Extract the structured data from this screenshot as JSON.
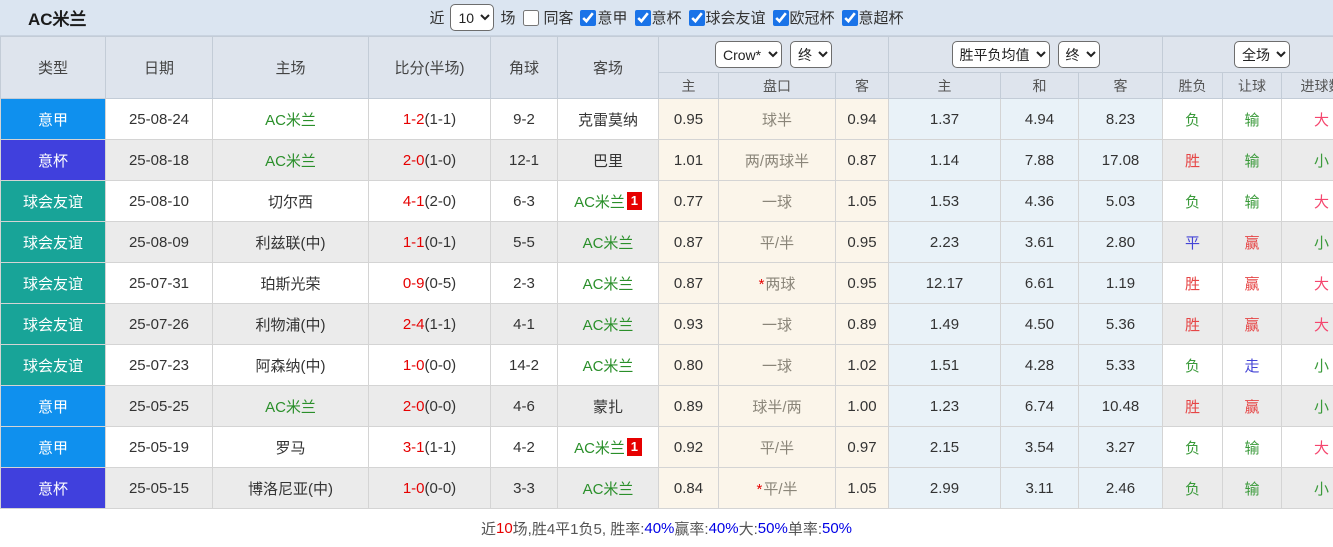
{
  "header": {
    "title": "AC米兰",
    "near_label": "近",
    "count_value": "10",
    "count_unit": "场",
    "same_away_label": "同客",
    "same_away_checked": false,
    "leagues": [
      {
        "label": "意甲",
        "checked": true
      },
      {
        "label": "意杯",
        "checked": true
      },
      {
        "label": "球会友谊",
        "checked": true
      },
      {
        "label": "欧冠杯",
        "checked": true
      },
      {
        "label": "意超杯",
        "checked": true
      }
    ]
  },
  "table": {
    "main_headers": [
      "类型",
      "日期",
      "主场",
      "比分(半场)",
      "角球",
      "客场"
    ],
    "selects": {
      "bookmaker": "Crow*",
      "handicap_time": "终",
      "europe_avg": "胜平负均值",
      "europe_time": "终",
      "scope": "全场"
    },
    "sub_headers": [
      "主",
      "盘口",
      "客",
      "主",
      "和",
      "客",
      "胜负",
      "让球",
      "进球数"
    ],
    "rows": [
      {
        "type": "意甲",
        "type_key": "seriea",
        "date": "25-08-24",
        "home": "AC米兰",
        "home_green": true,
        "score": "1-2",
        "half": "(1-1)",
        "corners": "9-2",
        "away": "克雷莫纳",
        "away_green": false,
        "away_badge": "",
        "ah_home": "0.95",
        "handicap": "球半",
        "handicap_star": false,
        "ah_away": "0.94",
        "odds_home": "1.37",
        "odds_draw": "4.94",
        "odds_away": "8.23",
        "result": "负",
        "result_color": "green",
        "ah_result": "输",
        "ah_result_color": "green",
        "ou_result": "大",
        "ou_result_color": "pink"
      },
      {
        "type": "意杯",
        "type_key": "cup",
        "date": "25-08-18",
        "home": "AC米兰",
        "home_green": true,
        "score": "2-0",
        "half": "(1-0)",
        "corners": "12-1",
        "away": "巴里",
        "away_green": false,
        "away_badge": "",
        "ah_home": "1.01",
        "handicap": "两/两球半",
        "handicap_star": false,
        "ah_away": "0.87",
        "odds_home": "1.14",
        "odds_draw": "7.88",
        "odds_away": "17.08",
        "result": "胜",
        "result_color": "red",
        "ah_result": "输",
        "ah_result_color": "green",
        "ou_result": "小",
        "ou_result_color": "green"
      },
      {
        "type": "球会友谊",
        "type_key": "friendly",
        "date": "25-08-10",
        "home": "切尔西",
        "home_green": false,
        "score": "4-1",
        "half": "(2-0)",
        "corners": "6-3",
        "away": "AC米兰",
        "away_green": true,
        "away_badge": "1",
        "ah_home": "0.77",
        "handicap": "一球",
        "handicap_star": false,
        "ah_away": "1.05",
        "odds_home": "1.53",
        "odds_draw": "4.36",
        "odds_away": "5.03",
        "result": "负",
        "result_color": "green",
        "ah_result": "输",
        "ah_result_color": "green",
        "ou_result": "大",
        "ou_result_color": "pink"
      },
      {
        "type": "球会友谊",
        "type_key": "friendly",
        "date": "25-08-09",
        "home": "利兹联(中)",
        "home_green": false,
        "score": "1-1",
        "half": "(0-1)",
        "corners": "5-5",
        "away": "AC米兰",
        "away_green": true,
        "away_badge": "",
        "ah_home": "0.87",
        "handicap": "平/半",
        "handicap_star": false,
        "ah_away": "0.95",
        "odds_home": "2.23",
        "odds_draw": "3.61",
        "odds_away": "2.80",
        "result": "平",
        "result_color": "blue",
        "ah_result": "赢",
        "ah_result_color": "red",
        "ou_result": "小",
        "ou_result_color": "green"
      },
      {
        "type": "球会友谊",
        "type_key": "friendly",
        "date": "25-07-31",
        "home": "珀斯光荣",
        "home_green": false,
        "score": "0-9",
        "half": "(0-5)",
        "corners": "2-3",
        "away": "AC米兰",
        "away_green": true,
        "away_badge": "",
        "ah_home": "0.87",
        "handicap": "两球",
        "handicap_star": true,
        "ah_away": "0.95",
        "odds_home": "12.17",
        "odds_draw": "6.61",
        "odds_away": "1.19",
        "result": "胜",
        "result_color": "red",
        "ah_result": "赢",
        "ah_result_color": "red",
        "ou_result": "大",
        "ou_result_color": "pink"
      },
      {
        "type": "球会友谊",
        "type_key": "friendly",
        "date": "25-07-26",
        "home": "利物浦(中)",
        "home_green": false,
        "score": "2-4",
        "half": "(1-1)",
        "corners": "4-1",
        "away": "AC米兰",
        "away_green": true,
        "away_badge": "",
        "ah_home": "0.93",
        "handicap": "一球",
        "handicap_star": false,
        "ah_away": "0.89",
        "odds_home": "1.49",
        "odds_draw": "4.50",
        "odds_away": "5.36",
        "result": "胜",
        "result_color": "red",
        "ah_result": "赢",
        "ah_result_color": "red",
        "ou_result": "大",
        "ou_result_color": "pink"
      },
      {
        "type": "球会友谊",
        "type_key": "friendly",
        "date": "25-07-23",
        "home": "阿森纳(中)",
        "home_green": false,
        "score": "1-0",
        "half": "(0-0)",
        "corners": "14-2",
        "away": "AC米兰",
        "away_green": true,
        "away_badge": "",
        "ah_home": "0.80",
        "handicap": "一球",
        "handicap_star": false,
        "ah_away": "1.02",
        "odds_home": "1.51",
        "odds_draw": "4.28",
        "odds_away": "5.33",
        "result": "负",
        "result_color": "green",
        "ah_result": "走",
        "ah_result_color": "blue",
        "ou_result": "小",
        "ou_result_color": "green"
      },
      {
        "type": "意甲",
        "type_key": "seriea",
        "date": "25-05-25",
        "home": "AC米兰",
        "home_green": true,
        "score": "2-0",
        "half": "(0-0)",
        "corners": "4-6",
        "away": "蒙扎",
        "away_green": false,
        "away_badge": "",
        "ah_home": "0.89",
        "handicap": "球半/两",
        "handicap_star": false,
        "ah_away": "1.00",
        "odds_home": "1.23",
        "odds_draw": "6.74",
        "odds_away": "10.48",
        "result": "胜",
        "result_color": "red",
        "ah_result": "赢",
        "ah_result_color": "red",
        "ou_result": "小",
        "ou_result_color": "green"
      },
      {
        "type": "意甲",
        "type_key": "seriea",
        "date": "25-05-19",
        "home": "罗马",
        "home_green": false,
        "score": "3-1",
        "half": "(1-1)",
        "corners": "4-2",
        "away": "AC米兰",
        "away_green": true,
        "away_badge": "1",
        "ah_home": "0.92",
        "handicap": "平/半",
        "handicap_star": false,
        "ah_away": "0.97",
        "odds_home": "2.15",
        "odds_draw": "3.54",
        "odds_away": "3.27",
        "result": "负",
        "result_color": "green",
        "ah_result": "输",
        "ah_result_color": "green",
        "ou_result": "大",
        "ou_result_color": "pink"
      },
      {
        "type": "意杯",
        "type_key": "cup",
        "date": "25-05-15",
        "home": "博洛尼亚(中)",
        "home_green": false,
        "score": "1-0",
        "half": "(0-0)",
        "corners": "3-3",
        "away": "AC米兰",
        "away_green": true,
        "away_badge": "",
        "ah_home": "0.84",
        "handicap": "平/半",
        "handicap_star": true,
        "ah_away": "1.05",
        "odds_home": "2.99",
        "odds_draw": "3.11",
        "odds_away": "2.46",
        "result": "负",
        "result_color": "green",
        "ah_result": "输",
        "ah_result_color": "green",
        "ou_result": "小",
        "ou_result_color": "green"
      }
    ]
  },
  "summary": {
    "parts": [
      {
        "text": "近",
        "color": ""
      },
      {
        "text": "10",
        "color": "red"
      },
      {
        "text": "场,胜4平1负5, 胜率:",
        "color": ""
      },
      {
        "text": "40%",
        "color": "blue"
      },
      {
        "text": " 赢率:",
        "color": ""
      },
      {
        "text": "40%",
        "color": "blue"
      },
      {
        "text": " 大:",
        "color": ""
      },
      {
        "text": "50%",
        "color": "blue"
      },
      {
        "text": " 单率:",
        "color": ""
      },
      {
        "text": "50%",
        "color": "blue"
      }
    ]
  },
  "colors": {
    "serie_a_bg": "#0f90ee",
    "coppa_bg": "#4040dd",
    "friendly_bg": "#18a498",
    "team_green": "#2a8f2a",
    "score_red": "#e60000",
    "win_red": "#e64545",
    "draw_blue": "#4545d6",
    "lose_green": "#3a9a3a",
    "big_pink": "#f5466e",
    "percent_blue": "#0000e6",
    "badge_bg": "#e60000",
    "checkbox_accent": "#1a73e8",
    "topbar_bg": "#dbe5f1",
    "header_bg": "#dee4ed",
    "alt_row_bg": "#ebebeb",
    "handicap_col_bg": "#fbf5ea",
    "europe_col_bg": "#e9f2f8"
  }
}
